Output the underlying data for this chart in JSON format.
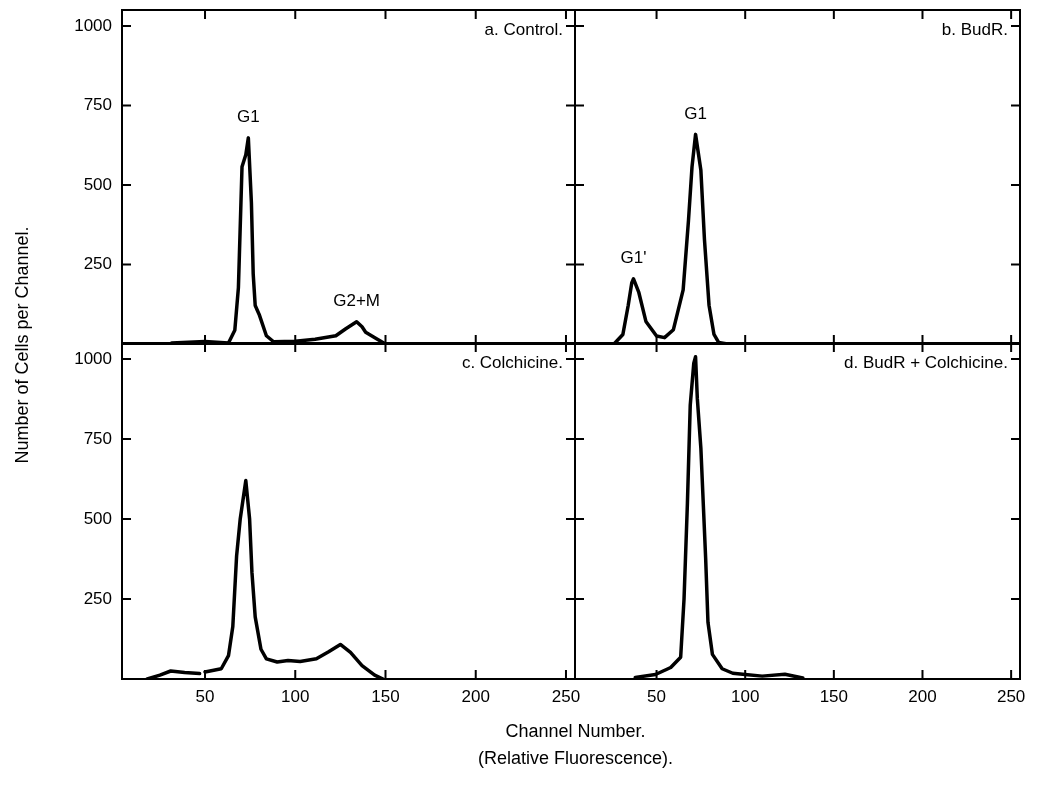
{
  "chart_data": [
    {
      "type": "line",
      "title": "a. Control.",
      "ylabel": "Number of Cells per Channel.",
      "color": "#000000",
      "marker": "none",
      "tick_labels": "y",
      "x": [
        31.5,
        50,
        63,
        66.5,
        68.5,
        70.5,
        72.6,
        74,
        75.7,
        76.7,
        77.8,
        80,
        84,
        88,
        100,
        111,
        122.5,
        128,
        134,
        137,
        139,
        145.5,
        150
      ],
      "values": [
        3,
        8,
        3,
        43,
        177,
        557,
        595,
        648,
        444,
        220,
        121,
        93,
        26,
        7,
        9,
        15,
        26,
        48,
        70,
        54,
        37,
        15,
        0
      ],
      "xlim": [
        4,
        255
      ],
      "ylim": [
        0,
        1050
      ],
      "xticks": [
        50,
        100,
        150,
        200,
        250
      ],
      "yticks": [
        250,
        500,
        750,
        1000
      ],
      "annotations": [
        {
          "text": "G1",
          "x": 74,
          "y": 648
        },
        {
          "text": "G2+M",
          "x": 134,
          "y": 70
        }
      ]
    },
    {
      "type": "line",
      "title": "b. BudR.",
      "color": "#000000",
      "marker": "none",
      "tick_labels": false,
      "x": [
        26,
        31,
        34,
        36,
        37,
        40,
        44,
        50,
        54.5,
        59.5,
        65,
        68,
        70,
        72,
        75,
        77,
        79.6,
        82.4,
        85,
        90
      ],
      "values": [
        0,
        30,
        121,
        192,
        205,
        162,
        71,
        25,
        20,
        45,
        170,
        388,
        557,
        659,
        546,
        330,
        122,
        30,
        5,
        0
      ],
      "xlim": [
        4,
        255
      ],
      "ylim": [
        0,
        1050
      ],
      "xticks": [
        50,
        100,
        150,
        200,
        250
      ],
      "yticks": [
        250,
        500,
        750,
        1000
      ],
      "annotations": [
        {
          "text": "G1'",
          "x": 37,
          "y": 205
        },
        {
          "text": "G1",
          "x": 72,
          "y": 659
        }
      ]
    },
    {
      "type": "line",
      "title": "c. Colchicine.",
      "xlabel": "Channel Number.\n(Relative Fluorescence).",
      "color": "#000000",
      "marker": "none",
      "x": [
        18,
        25,
        31,
        38.7,
        47,
        48.5,
        50,
        59,
        63,
        65.4,
        67.5,
        69.5,
        72.6,
        74.7,
        76,
        77.8,
        81,
        84,
        90,
        96,
        102.7,
        111.7,
        118.5,
        125,
        130.6,
        137,
        144,
        148.6
      ],
      "values": [
        0,
        12,
        25,
        20,
        17,
        null,
        22,
        32,
        73,
        164,
        385,
        500,
        620,
        500,
        333,
        194,
        93,
        63,
        53,
        58,
        55,
        63,
        85,
        108,
        83,
        42,
        12,
        0
      ],
      "xlim": [
        4,
        255
      ],
      "ylim": [
        0,
        1050
      ],
      "xticks": [
        50,
        100,
        150,
        200,
        250
      ],
      "yticks": [
        250,
        500,
        750,
        1000
      ]
    },
    {
      "type": "line",
      "title": "d. BudR + Colchicine.",
      "color": "#000000",
      "marker": "none",
      "tick_labels": "x",
      "x": [
        38,
        49.4,
        58,
        63.6,
        65.5,
        67.4,
        69,
        71,
        72,
        73,
        75,
        77.7,
        79,
        81.5,
        87,
        93,
        100,
        109.6,
        122.4,
        132.5
      ],
      "values": [
        5,
        14,
        36,
        68,
        250,
        548,
        856,
        987,
        1007,
        876,
        721,
        376,
        177,
        77,
        32,
        18,
        14,
        9,
        15,
        3
      ],
      "xlim": [
        4,
        255
      ],
      "ylim": [
        0,
        1050
      ],
      "xticks": [
        50,
        100,
        150,
        200,
        250
      ],
      "yticks": [
        250,
        500,
        750,
        1000
      ]
    }
  ]
}
